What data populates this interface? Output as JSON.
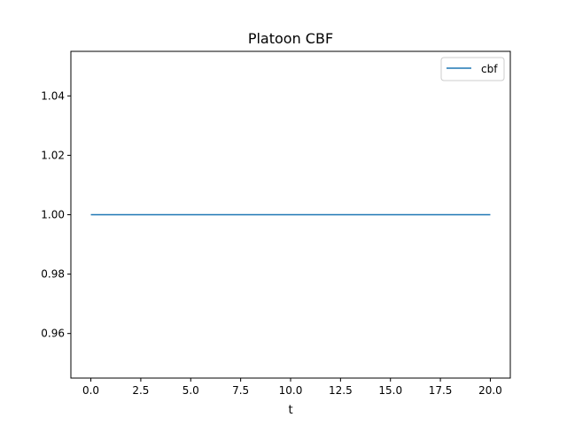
{
  "chart_data": {
    "type": "line",
    "title": "Platoon CBF",
    "xlabel": "t",
    "ylabel": "",
    "xlim": [
      -1.0,
      21.0
    ],
    "ylim": [
      0.945,
      1.055
    ],
    "xticks": [
      0.0,
      2.5,
      5.0,
      7.5,
      10.0,
      12.5,
      15.0,
      17.5,
      20.0
    ],
    "xtick_labels": [
      "0.0",
      "2.5",
      "5.0",
      "7.5",
      "10.0",
      "12.5",
      "15.0",
      "17.5",
      "20.0"
    ],
    "yticks": [
      0.96,
      0.98,
      1.0,
      1.02,
      1.04
    ],
    "ytick_labels": [
      "0.96",
      "0.98",
      "1.00",
      "1.02",
      "1.04"
    ],
    "grid": false,
    "legend_position": "top-right",
    "series": [
      {
        "name": "cbf",
        "color": "#1f77b4",
        "x": [
          0.0,
          20.0
        ],
        "y": [
          1.0,
          1.0
        ]
      }
    ]
  }
}
